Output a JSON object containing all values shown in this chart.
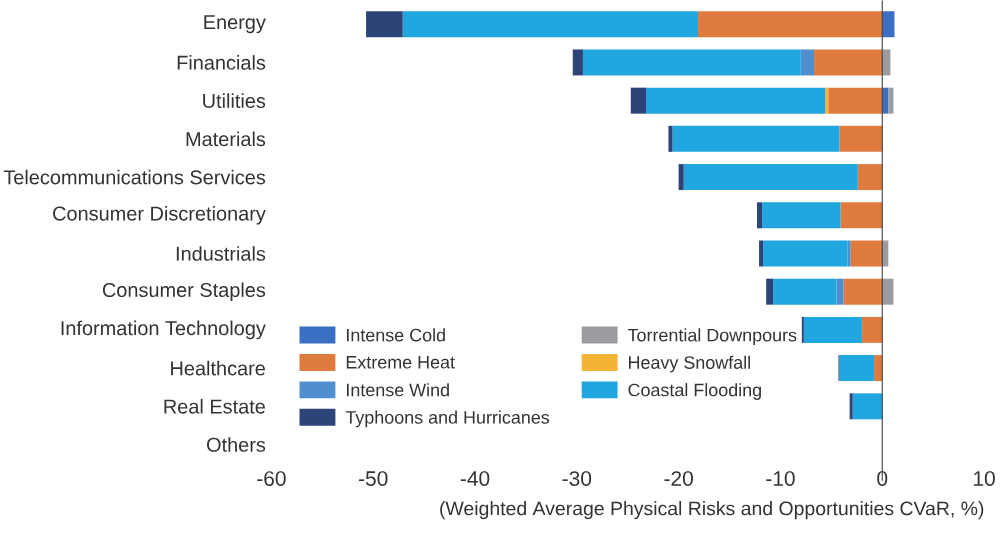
{
  "chart_data": {
    "type": "bar",
    "orientation": "horizontal",
    "stacked": true,
    "categories": [
      "Energy",
      "Financials",
      "Utilities",
      "Materials",
      "Telecommunications Services",
      "Consumer Discretionary",
      "Industrials",
      "Consumer Staples",
      "Information Technology",
      "Healthcare",
      "Real Estate",
      "Others"
    ],
    "series": [
      {
        "name": "Intense Cold",
        "color": "#3a6fc4",
        "values": [
          1.2,
          null,
          0.6,
          null,
          null,
          null,
          null,
          null,
          null,
          null,
          null,
          null
        ]
      },
      {
        "name": "Torrential Downpours",
        "color": "#9a9b9e",
        "values": [
          null,
          0.8,
          0.5,
          null,
          null,
          null,
          0.6,
          1.1,
          null,
          null,
          null,
          null
        ]
      },
      {
        "name": "Extreme Heat",
        "color": "#e07b3f",
        "values": [
          -18.1,
          -6.7,
          -5.3,
          -4.2,
          -2.4,
          -4.1,
          -3.1,
          -3.8,
          -2.0,
          -0.8,
          null,
          null
        ]
      },
      {
        "name": "Heavy Snowfall",
        "color": "#f5b335",
        "values": [
          null,
          null,
          -0.3,
          null,
          null,
          null,
          null,
          null,
          null,
          null,
          null,
          null
        ]
      },
      {
        "name": "Intense Wind",
        "color": "#4f8fcd",
        "values": [
          null,
          -1.3,
          null,
          null,
          null,
          null,
          -0.3,
          -0.7,
          null,
          null,
          null,
          null
        ]
      },
      {
        "name": "Coastal Flooding",
        "color": "#21a6df",
        "values": [
          -29.0,
          -21.4,
          -17.6,
          -16.4,
          -17.1,
          -7.7,
          -8.3,
          -6.2,
          -5.7,
          -3.4,
          -2.9,
          null
        ]
      },
      {
        "name": "Typhoons and Hurricanes",
        "color": "#2c4478",
        "values": [
          -3.6,
          -1.0,
          -1.5,
          -0.4,
          -0.5,
          -0.5,
          -0.4,
          -0.7,
          -0.2,
          -0.1,
          -0.3,
          null
        ]
      }
    ],
    "xlabel": "(Weighted Average Physical Risks and Opportunities CVaR, %)",
    "xlim": [
      -60,
      10
    ],
    "xticks": [
      -60,
      -50,
      -40,
      -30,
      -20,
      -10,
      0,
      10
    ],
    "legend": "bottom left"
  }
}
